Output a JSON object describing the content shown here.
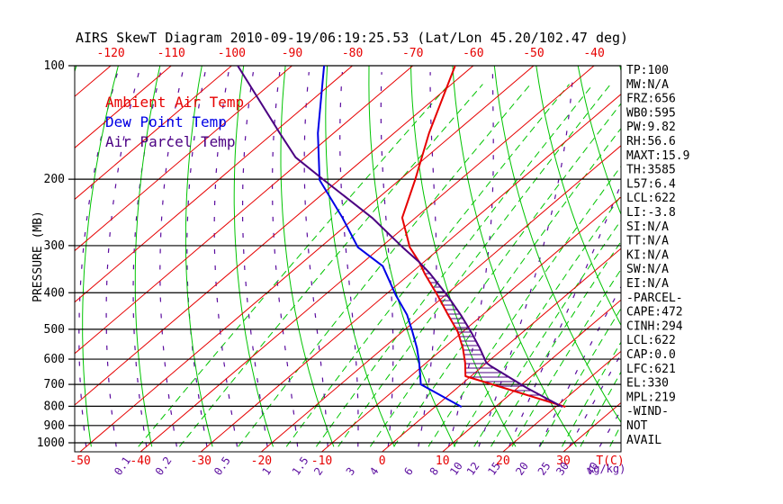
{
  "title": "AIRS SkewT Diagram 2010-09-19/06:19:25.53 (Lat/Lon 45.20/102.47 deg)",
  "legend": {
    "ambient_label": "Ambient Air Temp",
    "dew_label": "Dew Point Temp",
    "parcel_label": "Air Parcel Temp"
  },
  "colors": {
    "isotherm_red": "#e60000",
    "grid_green": "#00c400",
    "moist_purple": "#5a0b9e",
    "ambient_red": "#e60000",
    "dew_blue": "#0000e6",
    "parcel_purple": "#4b0082",
    "axis_black": "#000000"
  },
  "stats_panel": {
    "items": [
      "TP:100",
      "MW:N/A",
      "FRZ:656",
      "WB0:595",
      "PW:9.82",
      "RH:56.6",
      "MAXT:15.9",
      "TH:3585",
      "L57:6.4",
      "LCL:622",
      "LI:-3.8",
      "SI:N/A",
      "TT:N/A",
      "KI:N/A",
      "SW:N/A",
      "EI:N/A",
      "-PARCEL-",
      "CAPE:472",
      "CINH:294",
      "LCL:622",
      "CAP:0.0",
      "LFC:621",
      "EL:330",
      "MPL:219",
      "-WIND-",
      "NOT",
      "AVAIL"
    ]
  },
  "chart_data": {
    "type": "line",
    "subtype": "skewt-log-p",
    "title": "AIRS SkewT Diagram 2010-09-19/06:19:25.53 (Lat/Lon 45.20/102.47 deg)",
    "xlabel": "T(C)",
    "ylabel": "PRESSURE (MB)",
    "mixing_ratio_unit": "(g/kg)",
    "y_axis": {
      "scale": "log",
      "ticks_mb": [
        100,
        200,
        300,
        400,
        500,
        600,
        700,
        800,
        900,
        1000
      ],
      "range_mb": [
        100,
        1024
      ]
    },
    "x_axis": {
      "top_ticks_c": [
        -120,
        -110,
        -100,
        -90,
        -80,
        -70,
        -60,
        -50,
        -40
      ],
      "bottom_ticks_c": [
        -50,
        -40,
        -30,
        -20,
        -10,
        0,
        10,
        20,
        30
      ],
      "mixing_ratio_labels_gkg": [
        0.1,
        0.2,
        0.5,
        1,
        1.5,
        2,
        3,
        4,
        6,
        8,
        10,
        12,
        15,
        20,
        25,
        30,
        40
      ]
    },
    "background": {
      "isotherms_c": {
        "min": -120,
        "max": 40,
        "step": 10
      },
      "dry_adiabats_theta_c": {
        "min": -60,
        "max": 150,
        "step": 10
      },
      "moist_adiabats_t0_c": {
        "min": -50,
        "max": 45,
        "step": 5
      },
      "hatch_region": {
        "between": [
          "Air Parcel Temp",
          "Ambient Air Temp"
        ],
        "from_p_mb": 332,
        "to_p_mb": 803
      }
    },
    "series": [
      {
        "name": "Ambient Air Temp",
        "color_key": "ambient_red",
        "points_t_p": [
          [
            -63.0,
            100
          ],
          [
            -54.2,
            151
          ],
          [
            -47.4,
            201
          ],
          [
            -42.2,
            253
          ],
          [
            -35.2,
            303
          ],
          [
            -30.7,
            332
          ],
          [
            -27.6,
            356
          ],
          [
            -21.3,
            406
          ],
          [
            -15.7,
            458
          ],
          [
            -10.8,
            508
          ],
          [
            -6.8,
            561
          ],
          [
            -3.6,
            613
          ],
          [
            -0.9,
            666
          ],
          [
            7.7,
            715
          ],
          [
            21.6,
            803
          ]
        ]
      },
      {
        "name": "Dew Point Temp",
        "color_key": "dew_blue",
        "points_t_p": [
          [
            -84.7,
            100
          ],
          [
            -72.6,
            151
          ],
          [
            -63.2,
            201
          ],
          [
            -52.1,
            253
          ],
          [
            -43.8,
            303
          ],
          [
            -36.0,
            340
          ],
          [
            -28.2,
            406
          ],
          [
            -22.5,
            458
          ],
          [
            -18.3,
            508
          ],
          [
            -14.4,
            561
          ],
          [
            -11.2,
            613
          ],
          [
            -6.7,
            700
          ],
          [
            4.4,
            803
          ]
        ]
      },
      {
        "name": "Air Parcel Temp",
        "color_key": "parcel_purple",
        "points_t_p": [
          [
            -99.0,
            100
          ],
          [
            -78.9,
            151
          ],
          [
            -71.6,
            175
          ],
          [
            -62.5,
            201
          ],
          [
            -47.2,
            253
          ],
          [
            -36.4,
            303
          ],
          [
            -30.7,
            332
          ],
          [
            -26.7,
            356
          ],
          [
            -19.7,
            406
          ],
          [
            -13.6,
            458
          ],
          [
            -8.6,
            508
          ],
          [
            -4.0,
            561
          ],
          [
            -0.1,
            613
          ],
          [
            1.2,
            625
          ],
          [
            11.5,
            715
          ],
          [
            21.1,
            803
          ]
        ]
      }
    ]
  }
}
